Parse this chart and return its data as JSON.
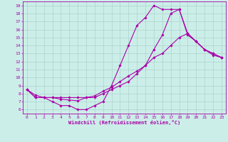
{
  "xlabel": "Windchill (Refroidissement éolien,°C)",
  "bg_color": "#cceee8",
  "grid_color": "#aad4cc",
  "line_color": "#aa00aa",
  "xlim": [
    -0.5,
    23.5
  ],
  "ylim": [
    5.5,
    19.5
  ],
  "xticks": [
    0,
    1,
    2,
    3,
    4,
    5,
    6,
    7,
    8,
    9,
    10,
    11,
    12,
    13,
    14,
    15,
    16,
    17,
    18,
    19,
    20,
    21,
    22,
    23
  ],
  "yticks": [
    6,
    7,
    8,
    9,
    10,
    11,
    12,
    13,
    14,
    15,
    16,
    17,
    18,
    19
  ],
  "curve1_x": [
    0,
    1,
    2,
    3,
    4,
    5,
    6,
    7,
    8,
    9,
    10,
    11,
    12,
    13,
    14,
    15,
    16,
    17,
    18,
    19,
    20,
    21,
    22,
    23
  ],
  "curve1_y": [
    8.5,
    7.5,
    7.5,
    7.0,
    6.5,
    6.5,
    6.0,
    6.0,
    6.5,
    7.0,
    9.0,
    11.5,
    14.0,
    16.5,
    17.5,
    19.0,
    18.5,
    18.5,
    18.5,
    15.5,
    14.5,
    13.5,
    13.0,
    12.5
  ],
  "curve2_x": [
    0,
    1,
    2,
    3,
    4,
    5,
    6,
    7,
    8,
    9,
    10,
    11,
    12,
    13,
    14,
    15,
    16,
    17,
    18,
    19,
    20,
    21,
    22,
    23
  ],
  "curve2_y": [
    8.5,
    7.5,
    7.5,
    7.5,
    7.5,
    7.5,
    7.5,
    7.5,
    7.5,
    8.0,
    8.5,
    9.0,
    9.5,
    10.5,
    11.5,
    12.5,
    13.0,
    14.0,
    15.0,
    15.5,
    14.5,
    13.5,
    13.0,
    12.5
  ],
  "curve3_x": [
    0,
    1,
    2,
    3,
    4,
    5,
    6,
    7,
    8,
    9,
    10,
    11,
    12,
    13,
    14,
    15,
    16,
    17,
    18,
    19,
    20,
    21,
    22,
    23
  ],
  "curve3_y": [
    8.5,
    7.8,
    7.5,
    7.5,
    7.3,
    7.2,
    7.1,
    7.5,
    7.7,
    8.3,
    8.8,
    9.5,
    10.2,
    10.8,
    11.5,
    13.5,
    15.3,
    18.0,
    18.5,
    15.3,
    14.5,
    13.5,
    12.8,
    12.5
  ]
}
